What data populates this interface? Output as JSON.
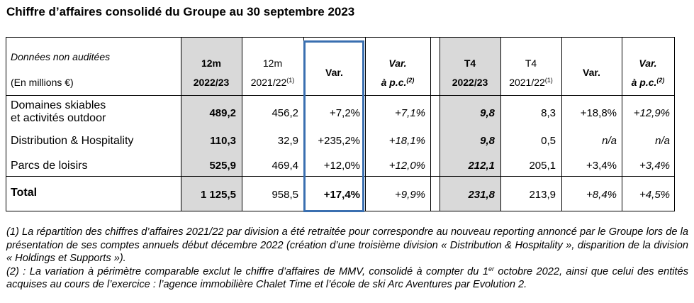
{
  "title": "Chiffre d’affaires consolidé du Groupe au 30 septembre 2023",
  "header": {
    "label_line1": "Données non auditées",
    "label_line2": "(En millions €)",
    "cols": [
      {
        "line1": "12m",
        "line2": "2022/23",
        "sup": ""
      },
      {
        "line1": "12m",
        "line2": "2021/22",
        "sup": "(1)"
      },
      {
        "line1": "Var.",
        "line2": "",
        "sup": ""
      },
      {
        "line1": "Var.",
        "line2": "à p.c.",
        "sup": "(2)"
      },
      {
        "line1": "T4",
        "line2": "2022/23",
        "sup": ""
      },
      {
        "line1": "T4",
        "line2": "2021/22",
        "sup": "(1)"
      },
      {
        "line1": "Var.",
        "line2": "",
        "sup": ""
      },
      {
        "line1": "Var.",
        "line2": "à p.c.",
        "sup": "(2)"
      }
    ]
  },
  "rows": [
    {
      "label1": "Domaines skiables",
      "label2": "et activités outdoor",
      "values": [
        "489,2",
        "456,2",
        "+7,2%",
        "+7,1%",
        "9,8",
        "8,3",
        "+18,8%",
        "+12,9%"
      ]
    },
    {
      "label1": "Distribution & Hospitality",
      "label2": "",
      "values": [
        "110,3",
        "32,9",
        "+235,2%",
        "+18,1%",
        "9,8",
        "0,5",
        "n/a",
        "n/a"
      ]
    },
    {
      "label1": "Parcs de loisirs",
      "label2": "",
      "values": [
        "525,9",
        "469,4",
        "+12,0%",
        "+12,0%",
        "212,1",
        "205,1",
        "+3,4%",
        "+3,4%"
      ]
    }
  ],
  "total": {
    "label": "Total",
    "values": [
      "1 125,5",
      "958,5",
      "+17,4%",
      "+9,9%",
      "231,8",
      "213,9",
      "+8,4%",
      "+4,5%"
    ]
  },
  "notes": {
    "note1": "(1) La répartition des chiffres d’affaires 2021/22 par division a été retraitée pour correspondre au nouveau reporting annoncé par le Groupe lors de la présentation de ses comptes annuels début décembre 2022 (création d’une troisième division « Distribution & Hospitality », disparition de la division « Holdings et Supports »).",
    "note2_a": "(2) : La variation à périmètre comparable exclut le chiffre d’affaires de MMV, consolidé à compter du 1",
    "note2_sup": "er",
    "note2_b": " octobre 2022, ainsi que celui des entités acquises au cours de l’exercice : l’agence immobilière Chalet Time et l’école de ski Arc Aventures par Evolution 2."
  },
  "colors": {
    "shade": "#d9d9d9",
    "highlight_border": "#3a6fb0"
  }
}
